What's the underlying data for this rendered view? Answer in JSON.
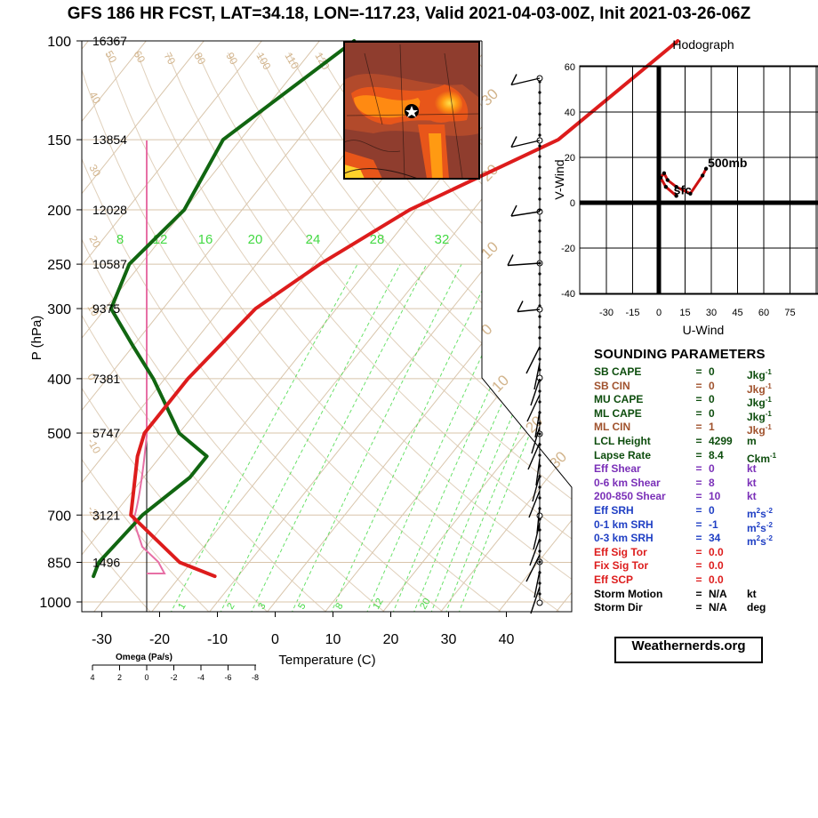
{
  "title": "GFS 186 HR FCST, LAT=34.18, LON=-117.23, Valid 2021-04-03-00Z, Init 2021-03-26-06Z",
  "credit": "Weathernerds.org",
  "colors": {
    "temperature": "#dd1c1c",
    "dewpoint": "#116611",
    "omega": "#e76fa5",
    "isotherm": "#d8c4aa",
    "mixing_ratio": "#44d944",
    "hodo_trace": "#cc1111"
  },
  "chart_data": [
    {
      "type": "line",
      "name": "skew-t",
      "xlabel": "Temperature (C)",
      "ylabel": "P (hPa)",
      "x_ticks": [
        -30,
        -20,
        -10,
        0,
        10,
        20,
        30,
        40
      ],
      "pressure_levels": [
        100,
        150,
        200,
        250,
        300,
        400,
        500,
        700,
        850,
        1000
      ],
      "heights_m": {
        "100": "16367",
        "150": "13854",
        "200": "12028",
        "250": "10587",
        "300": "9375",
        "400": "7381",
        "500": "5747",
        "700": "3121",
        "850": "1496"
      },
      "mixing_ratio_labels_top": [
        "8",
        "12",
        "16",
        "20",
        "24",
        "28",
        "32"
      ],
      "mixing_ratio_labels_bottom": [
        "1",
        "2",
        "3",
        "5",
        "8",
        "12",
        "20"
      ],
      "isotherm_labels": [
        "50",
        "60",
        "70",
        "80",
        "90",
        "100",
        "110",
        "120",
        "40",
        "30",
        "20",
        "10",
        "0",
        "-10",
        "-20"
      ],
      "series": [
        {
          "name": "temperature",
          "points": [
            [
              100,
              -8
            ],
            [
              150,
              -15
            ],
            [
              200,
              -31
            ],
            [
              250,
              -39
            ],
            [
              300,
              -44
            ],
            [
              400,
              -46
            ],
            [
              500,
              -46
            ],
            [
              550,
              -44
            ],
            [
              700,
              -37
            ],
            [
              850,
              -22
            ],
            [
              900,
              -14
            ]
          ]
        },
        {
          "name": "dewpoint",
          "points": [
            [
              100,
              -64
            ],
            [
              150,
              -73
            ],
            [
              200,
              -70
            ],
            [
              250,
              -72
            ],
            [
              300,
              -69
            ],
            [
              350,
              -60
            ],
            [
              400,
              -52
            ],
            [
              500,
              -40
            ],
            [
              550,
              -32
            ],
            [
              600,
              -32
            ],
            [
              700,
              -35
            ],
            [
              850,
              -36
            ],
            [
              900,
              -35
            ]
          ]
        }
      ],
      "omega": {
        "label": "Omega (Pa/s)",
        "ticks": [
          "4",
          "2",
          "0",
          "-2",
          "-4",
          "-6",
          "-8"
        ]
      }
    },
    {
      "type": "line",
      "name": "hodograph",
      "title": "Hodograph",
      "xlabel": "U-Wind",
      "ylabel": "V-Wind",
      "x_ticks": [
        "-30",
        "-15",
        "0",
        "15",
        "30",
        "45",
        "60",
        "75"
      ],
      "y_ticks": [
        "60",
        "40",
        "20",
        "0",
        "-20",
        "-40"
      ],
      "labels": {
        "top": "500mb",
        "bottom": "sfc"
      },
      "points": [
        [
          10,
          3
        ],
        [
          4,
          7
        ],
        [
          1,
          11
        ],
        [
          3,
          13
        ],
        [
          5,
          10
        ],
        [
          10,
          7
        ],
        [
          18,
          4
        ],
        [
          25,
          12
        ],
        [
          27,
          15
        ]
      ]
    }
  ],
  "parameters": {
    "title": "SOUNDING PARAMETERS",
    "rows": [
      {
        "name": "SB CAPE",
        "eq": "=",
        "value": "0",
        "unit": "Jkg",
        "sup": "-1",
        "color": "#0d4d0d"
      },
      {
        "name": "SB CIN",
        "eq": "=",
        "value": "0",
        "unit": "Jkg",
        "sup": "-1",
        "color": "#a0522d"
      },
      {
        "name": "MU CAPE",
        "eq": "=",
        "value": "0",
        "unit": "Jkg",
        "sup": "-1",
        "color": "#0d4d0d"
      },
      {
        "name": "ML CAPE",
        "eq": "=",
        "value": "0",
        "unit": "Jkg",
        "sup": "-1",
        "color": "#0d4d0d"
      },
      {
        "name": "ML CIN",
        "eq": "=",
        "value": "1",
        "unit": "Jkg",
        "sup": "-1",
        "color": "#a0522d"
      },
      {
        "name": "LCL Height",
        "eq": "=",
        "value": "4299",
        "unit": "m",
        "sup": "",
        "color": "#0d4d0d"
      },
      {
        "name": "Lapse Rate",
        "eq": "=",
        "value": "8.4",
        "unit": "Ckm",
        "sup": "-1",
        "color": "#0d4d0d"
      },
      {
        "name": "Eff Shear",
        "eq": "=",
        "value": "0",
        "unit": "kt",
        "sup": "",
        "color": "#7a2fb8"
      },
      {
        "name": "0-6 km Shear",
        "eq": "=",
        "value": "8",
        "unit": "kt",
        "sup": "",
        "color": "#7a2fb8"
      },
      {
        "name": "200-850 Shear",
        "eq": "=",
        "value": "10",
        "unit": "kt",
        "sup": "",
        "color": "#7a2fb8"
      },
      {
        "name": "Eff SRH",
        "eq": "=",
        "value": "0",
        "unit": "m",
        "sup": "2",
        "sup2": "s",
        "sup3": "-2",
        "color": "#1f3fc4"
      },
      {
        "name": "0-1 km SRH",
        "eq": "=",
        "value": "-1",
        "unit": "m",
        "sup": "2",
        "sup2": "s",
        "sup3": "-2",
        "color": "#1f3fc4"
      },
      {
        "name": "0-3 km SRH",
        "eq": "=",
        "value": "34",
        "unit": "m",
        "sup": "2",
        "sup2": "s",
        "sup3": "-2",
        "color": "#1f3fc4"
      },
      {
        "name": "Eff Sig Tor",
        "eq": "=",
        "value": "0.0",
        "unit": "",
        "sup": "",
        "color": "#dd1c1c"
      },
      {
        "name": "Fix Sig Tor",
        "eq": "=",
        "value": "0.0",
        "unit": "",
        "sup": "",
        "color": "#dd1c1c"
      },
      {
        "name": "Eff SCP",
        "eq": "=",
        "value": "0.0",
        "unit": "",
        "sup": "",
        "color": "#dd1c1c"
      },
      {
        "name": "Storm Motion",
        "eq": "=",
        "value": "N/A",
        "unit": "kt",
        "sup": "",
        "color": "#000000"
      },
      {
        "name": "Storm Dir",
        "eq": "=",
        "value": "N/A",
        "unit": "deg",
        "sup": "",
        "color": "#000000"
      }
    ]
  }
}
